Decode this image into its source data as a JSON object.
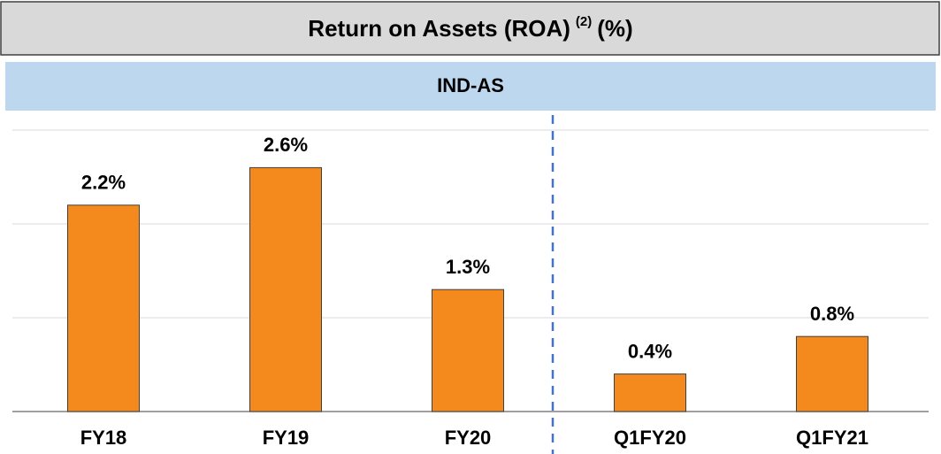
{
  "chart_data": {
    "type": "bar",
    "title": "Return on Assets (ROA)",
    "title_note": "(2)",
    "title_unit": "(%)",
    "subtitle": "IND-AS",
    "categories": [
      "FY18",
      "FY19",
      "FY20",
      "Q1FY20",
      "Q1FY21"
    ],
    "values": [
      2.2,
      2.6,
      1.3,
      0.4,
      0.8
    ],
    "value_labels": [
      "2.2%",
      "2.6%",
      "1.3%",
      "0.4%",
      "0.8%"
    ],
    "color": "#f48a1e",
    "ylim": [
      0,
      3
    ],
    "yticks": [
      0,
      1,
      2,
      3
    ],
    "grid": true
  }
}
